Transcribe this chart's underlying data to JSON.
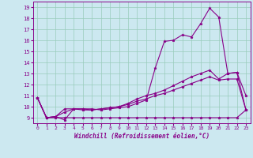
{
  "xlabel": "Windchill (Refroidissement éolien,°C)",
  "ylabel": "",
  "bg_color": "#cce8f0",
  "line_color": "#880088",
  "grid_color": "#99ccbb",
  "xlim": [
    -0.5,
    23.5
  ],
  "ylim": [
    8.5,
    19.5
  ],
  "xticks": [
    0,
    1,
    2,
    3,
    4,
    5,
    6,
    7,
    8,
    9,
    10,
    11,
    12,
    13,
    14,
    15,
    16,
    17,
    18,
    19,
    20,
    21,
    22,
    23
  ],
  "yticks": [
    9,
    10,
    11,
    12,
    13,
    14,
    15,
    16,
    17,
    18,
    19
  ],
  "series": [
    [
      10.8,
      9.0,
      9.1,
      8.8,
      9.8,
      9.8,
      9.8,
      9.7,
      9.8,
      9.9,
      10.0,
      10.3,
      10.6,
      13.5,
      15.9,
      16.0,
      16.5,
      16.3,
      17.5,
      18.9,
      18.1,
      13.0,
      13.1,
      11.0
    ],
    [
      10.8,
      9.0,
      9.1,
      9.8,
      9.8,
      9.8,
      9.7,
      9.8,
      9.9,
      10.0,
      10.3,
      10.7,
      11.0,
      11.2,
      11.5,
      11.9,
      12.3,
      12.7,
      13.0,
      13.3,
      12.5,
      13.0,
      13.1,
      9.7
    ],
    [
      10.8,
      9.0,
      9.1,
      9.5,
      9.8,
      9.7,
      9.7,
      9.8,
      9.9,
      10.0,
      10.2,
      10.5,
      10.7,
      11.0,
      11.2,
      11.5,
      11.8,
      12.1,
      12.4,
      12.7,
      12.4,
      12.5,
      12.5,
      9.7
    ],
    [
      10.8,
      9.0,
      9.0,
      9.0,
      9.0,
      9.0,
      9.0,
      9.0,
      9.0,
      9.0,
      9.0,
      9.0,
      9.0,
      9.0,
      9.0,
      9.0,
      9.0,
      9.0,
      9.0,
      9.0,
      9.0,
      9.0,
      9.0,
      9.7
    ]
  ]
}
